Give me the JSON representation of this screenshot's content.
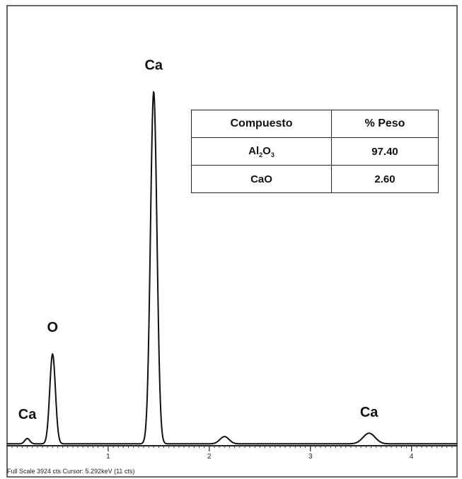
{
  "chart_data": {
    "type": "line",
    "xlabel": "",
    "ylabel": "",
    "xlim": [
      0,
      4.45
    ],
    "ylim": [
      0,
      3924
    ],
    "x_ticks": [
      "1",
      "2",
      "3",
      "4"
    ],
    "grid": false,
    "series": [
      {
        "peaks": [
          {
            "center": 0.2,
            "height": 55,
            "width": 0.025
          },
          {
            "center": 0.45,
            "height": 930,
            "width": 0.028
          },
          {
            "center": 1.45,
            "height": 3650,
            "width": 0.032
          },
          {
            "center": 2.15,
            "height": 75,
            "width": 0.045
          },
          {
            "center": 3.58,
            "height": 110,
            "width": 0.06
          }
        ],
        "baseline": 20
      }
    ],
    "peak_labels": [
      {
        "text": "Ca",
        "x": 0.2,
        "y": 280
      },
      {
        "text": "O",
        "x": 0.45,
        "y": 1180
      },
      {
        "text": "Ca",
        "x": 1.45,
        "y": 3900
      },
      {
        "text": "Ca",
        "x": 3.58,
        "y": 300
      }
    ]
  },
  "table": {
    "header": [
      "Compuesto",
      "% Peso"
    ],
    "rows": [
      {
        "compound_base": "Al",
        "sub1": "2",
        "mid": "O",
        "sub2": "3",
        "value": "97.40"
      },
      {
        "compound_base": "CaO",
        "sub1": "",
        "mid": "",
        "sub2": "",
        "value": "2.60"
      }
    ]
  },
  "footer": "Full Scale 3924 cts  Cursor: 5.292keV (11 cts)",
  "colors": {
    "line": "#111111",
    "axis": "#222222",
    "frame": "#333333"
  }
}
